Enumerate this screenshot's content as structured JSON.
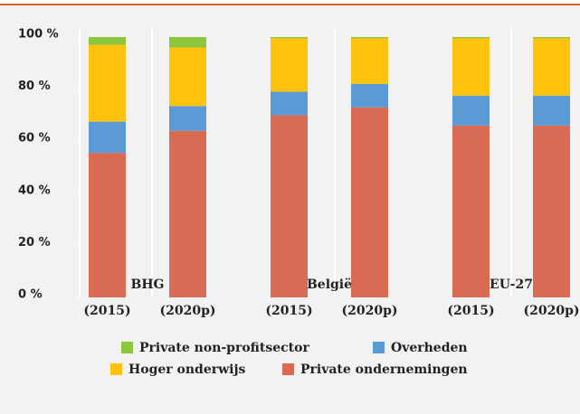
{
  "chart_data": {
    "type": "stacked_bar",
    "categories": [
      "(2015)",
      "(2020p)",
      "(2015)",
      "(2020p)",
      "(2015)",
      "(2020p)"
    ],
    "groups": [
      "BHG",
      "België",
      "EU-27"
    ],
    "series": [
      {
        "name": "Private ondernemingen",
        "color": "#d96b55",
        "values": [
          55.5,
          64,
          70,
          73,
          66,
          66
        ]
      },
      {
        "name": "Overheden",
        "color": "#5b9bd5",
        "values": [
          12,
          9.5,
          9,
          9,
          11.5,
          11.5
        ]
      },
      {
        "name": "Hoger onderwijs",
        "color": "#ffc20e",
        "values": [
          29.5,
          22.5,
          20.5,
          17.5,
          22,
          22
        ]
      },
      {
        "name": "Private non-profitsector",
        "color": "#8dc63f",
        "values": [
          3,
          4,
          0.5,
          0.5,
          0.5,
          0.5
        ]
      }
    ],
    "ylim": [
      0,
      100
    ],
    "yticks": [
      {
        "value": 0,
        "label": "0 %"
      },
      {
        "value": 20,
        "label": "20 %"
      },
      {
        "value": 40,
        "label": "40 %"
      },
      {
        "value": 60,
        "label": "60 %"
      },
      {
        "value": 80,
        "label": "80 %"
      },
      {
        "value": 100,
        "label": "100 %"
      }
    ]
  }
}
